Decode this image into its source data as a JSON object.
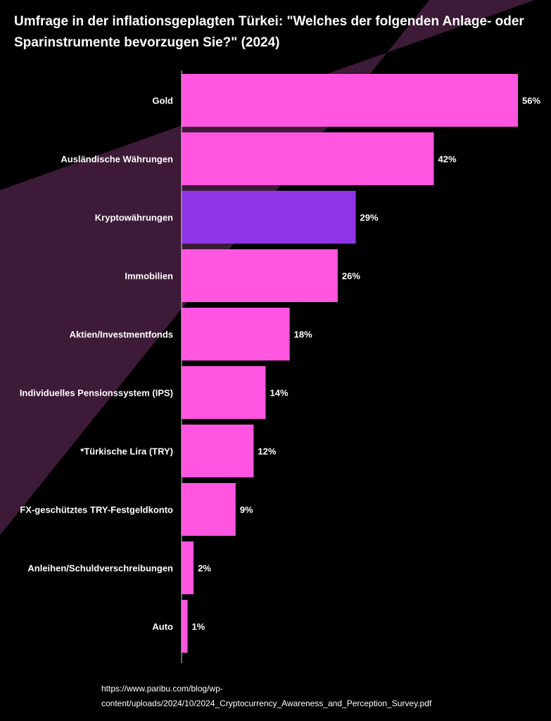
{
  "title": "Umfrage in der inflationsgeplagten Türkei: \"Welches der folgenden Anlage- oder Sparinstrumente bevorzugen Sie?\" (2024)",
  "colors": {
    "background": "#000000",
    "band": "#3d1a37",
    "bar_default": "#ff55e0",
    "bar_highlight": "#8f35e6",
    "axis": "#cccccc",
    "text": "#ffffff"
  },
  "chart_data": {
    "type": "bar",
    "orientation": "horizontal",
    "categories": [
      "Gold",
      "Ausländische Währungen",
      "Kryptowährungen",
      "Immobilien",
      "Aktien/Investmentfonds",
      "Individuelles Pensionssystem (IPS)",
      "*Türkische Lira (TRY)",
      "FX-geschütztes TRY-Festgeldkonto",
      "Anleihen/Schuldverschreibungen",
      "Auto"
    ],
    "values": [
      56,
      42,
      29,
      26,
      18,
      14,
      12,
      9,
      2,
      1
    ],
    "value_labels": [
      "56%",
      "42%",
      "29%",
      "26%",
      "18%",
      "14%",
      "12%",
      "9%",
      "2%",
      "1%"
    ],
    "highlight_index": 2,
    "xlim": [
      0,
      56
    ],
    "grid": false,
    "legend": "none"
  },
  "source": {
    "line1": "https://www.paribu.com/blog/wp-",
    "line2": "content/uploads/2024/10/2024_Cryptocurrency_Awareness_and_Perception_Survey.pdf"
  }
}
